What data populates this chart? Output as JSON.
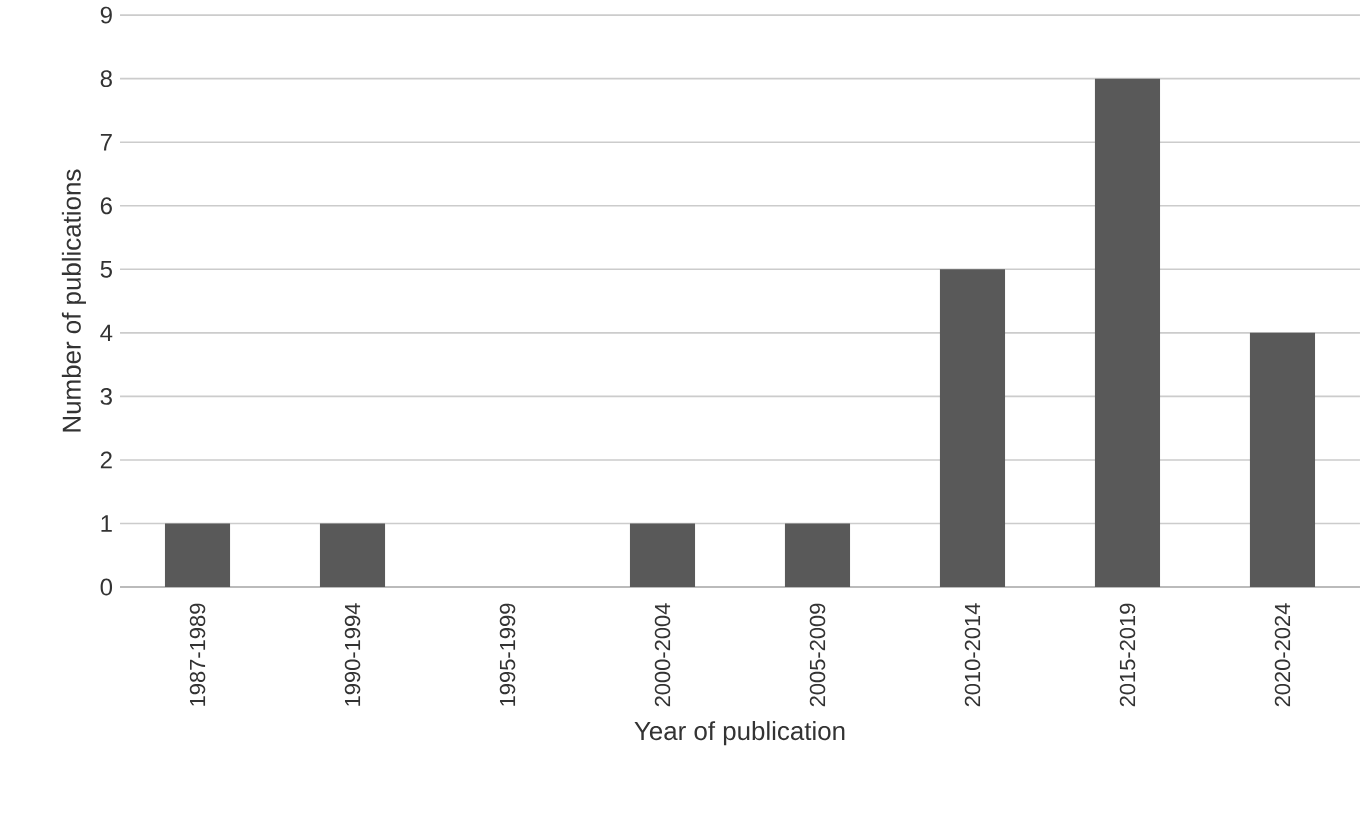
{
  "chart_data": {
    "type": "bar",
    "xlabel": "Year of publication",
    "ylabel": "Number of publications",
    "categories": [
      "1987-1989",
      "1990-1994",
      "1995-1999",
      "2000-2004",
      "2005-2009",
      "2010-2014",
      "2015-2019",
      "2020-2024"
    ],
    "values": [
      1,
      1,
      0,
      1,
      1,
      5,
      8,
      4
    ],
    "color": "#595959",
    "ylim": [
      0,
      9
    ],
    "yticks": [
      0,
      1,
      2,
      3,
      4,
      5,
      6,
      7,
      8,
      9
    ],
    "grid": "y"
  }
}
